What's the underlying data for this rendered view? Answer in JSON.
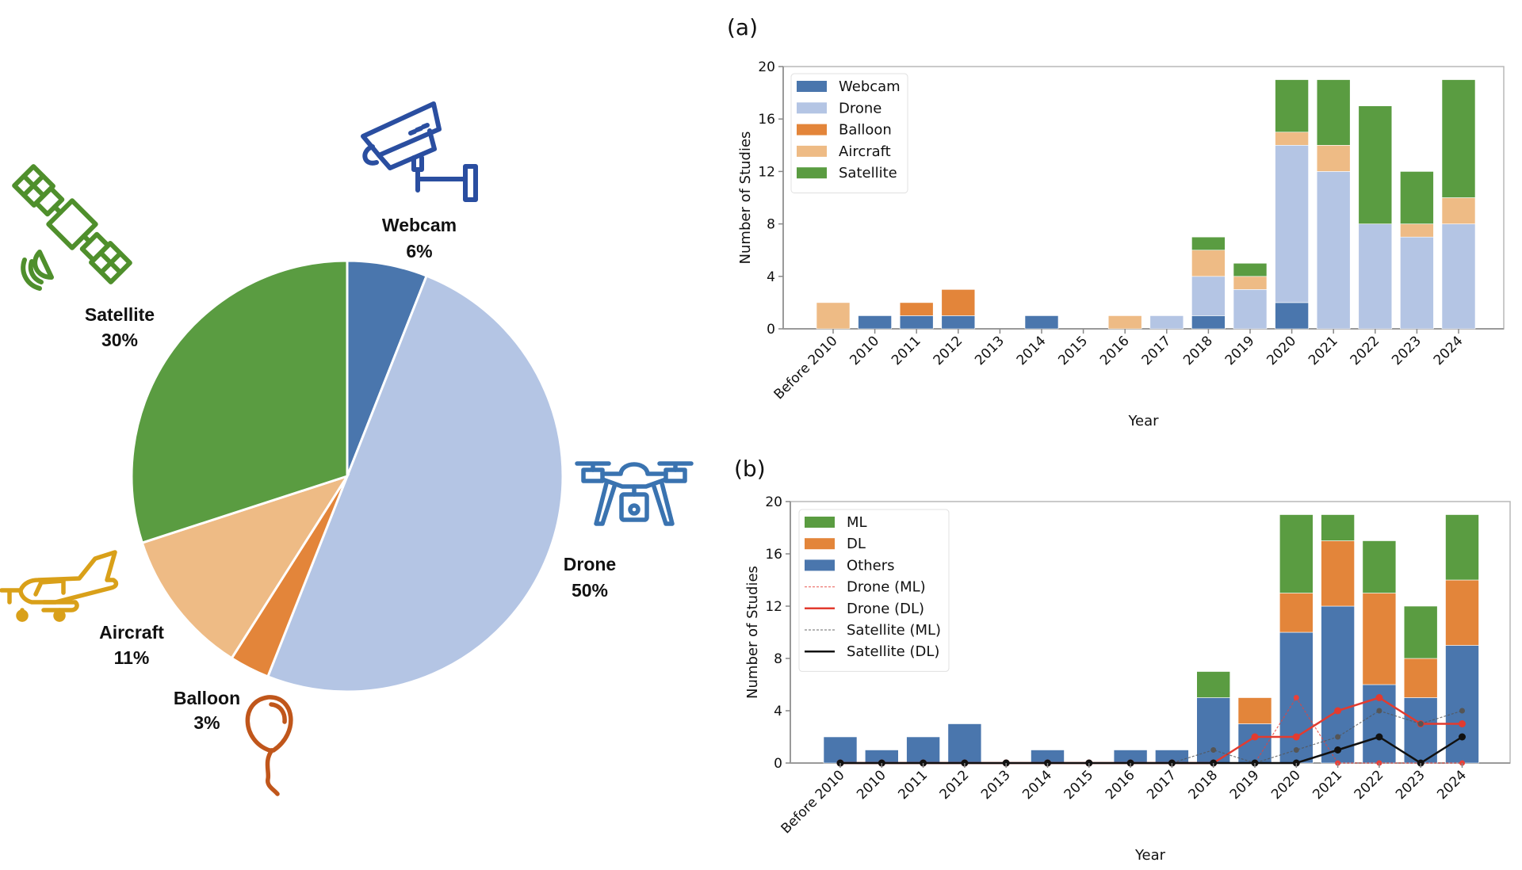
{
  "chart_data": [
    {
      "type": "pie",
      "title": "",
      "categories": [
        "Webcam",
        "Drone",
        "Balloon",
        "Aircraft",
        "Satellite"
      ],
      "values": [
        6,
        50,
        3,
        11,
        30
      ],
      "labels": [
        "6%",
        "50%",
        "3%",
        "11%",
        "30%"
      ],
      "colors": [
        "#4a76ad",
        "#b4c5e4",
        "#e3853a",
        "#eebb85",
        "#5a9c41"
      ],
      "icons": [
        "webcam-icon",
        "drone-icon",
        "balloon-icon",
        "aircraft-icon",
        "satellite-icon"
      ],
      "icon_colors": [
        "#2a4ea0",
        "#3a73b0",
        "#c0561b",
        "#d9a019",
        "#4f8f2c"
      ],
      "start_angle": "12 o'clock, clockwise"
    },
    {
      "type": "bar",
      "stacked": true,
      "panel_label": "(a)",
      "title": "",
      "xlabel": "Year",
      "ylabel": "Number of Studies",
      "ylim": [
        0,
        20
      ],
      "yticks": [
        0,
        4,
        8,
        12,
        16,
        20
      ],
      "categories": [
        "Before 2010",
        "2010",
        "2011",
        "2012",
        "2013",
        "2014",
        "2015",
        "2016",
        "2017",
        "2018",
        "2019",
        "2020",
        "2021",
        "2022",
        "2023",
        "2024"
      ],
      "legend_position": "top-left",
      "series": [
        {
          "name": "Webcam",
          "color": "#4a76ad",
          "values": [
            0,
            1,
            1,
            1,
            0,
            1,
            0,
            0,
            0,
            1,
            0,
            2,
            0,
            0,
            0,
            0
          ]
        },
        {
          "name": "Drone",
          "color": "#b4c5e4",
          "values": [
            0,
            0,
            0,
            0,
            0,
            0,
            0,
            0,
            1,
            3,
            3,
            12,
            12,
            8,
            7,
            8
          ]
        },
        {
          "name": "Balloon",
          "color": "#e3853a",
          "values": [
            0,
            0,
            1,
            2,
            0,
            0,
            0,
            0,
            0,
            0,
            0,
            0,
            0,
            0,
            0,
            0
          ]
        },
        {
          "name": "Aircraft",
          "color": "#eebb85",
          "values": [
            2,
            0,
            0,
            0,
            0,
            0,
            0,
            1,
            0,
            2,
            1,
            1,
            2,
            0,
            1,
            2
          ]
        },
        {
          "name": "Satellite",
          "color": "#5a9c41",
          "values": [
            0,
            0,
            0,
            0,
            0,
            0,
            0,
            0,
            0,
            1,
            1,
            4,
            5,
            9,
            4,
            9
          ]
        }
      ]
    },
    {
      "type": "bar",
      "stacked": true,
      "panel_label": "(b)",
      "title": "",
      "xlabel": "Year",
      "ylabel": "Number of Studies",
      "ylim": [
        0,
        20
      ],
      "yticks": [
        0,
        4,
        8,
        12,
        16,
        20
      ],
      "categories": [
        "Before 2010",
        "2010",
        "2011",
        "2012",
        "2013",
        "2014",
        "2015",
        "2016",
        "2017",
        "2018",
        "2019",
        "2020",
        "2021",
        "2022",
        "2023",
        "2024"
      ],
      "legend_position": "top-left",
      "series": [
        {
          "name": "Others",
          "color": "#4a76ad",
          "values": [
            2,
            1,
            2,
            3,
            0,
            1,
            0,
            1,
            1,
            5,
            3,
            10,
            12,
            6,
            5,
            9
          ]
        },
        {
          "name": "DL",
          "color": "#e3853a",
          "values": [
            0,
            0,
            0,
            0,
            0,
            0,
            0,
            0,
            0,
            0,
            2,
            3,
            5,
            7,
            3,
            5
          ]
        },
        {
          "name": "ML",
          "color": "#5a9c41",
          "values": [
            0,
            0,
            0,
            0,
            0,
            0,
            0,
            0,
            0,
            2,
            0,
            6,
            2,
            4,
            4,
            5
          ]
        }
      ],
      "legend_bar_order": [
        "ML",
        "DL",
        "Others"
      ],
      "lines": [
        {
          "name": "Drone (ML)",
          "color": "#e8413a",
          "style": "dotted",
          "values": [
            0,
            0,
            0,
            0,
            0,
            0,
            0,
            0,
            0,
            0,
            0,
            5,
            0,
            0,
            0,
            0
          ]
        },
        {
          "name": "Drone (DL)",
          "color": "#e23b2f",
          "style": "solid",
          "values": [
            0,
            0,
            0,
            0,
            0,
            0,
            0,
            0,
            0,
            0,
            2,
            2,
            4,
            5,
            3,
            3
          ]
        },
        {
          "name": "Satellite (ML)",
          "color": "#555555",
          "style": "dotted",
          "values": [
            0,
            0,
            0,
            0,
            0,
            0,
            0,
            0,
            0,
            1,
            0,
            1,
            2,
            4,
            3,
            4
          ]
        },
        {
          "name": "Satellite (DL)",
          "color": "#111111",
          "style": "solid",
          "values": [
            0,
            0,
            0,
            0,
            0,
            0,
            0,
            0,
            0,
            0,
            0,
            0,
            1,
            2,
            0,
            2
          ]
        }
      ]
    }
  ]
}
